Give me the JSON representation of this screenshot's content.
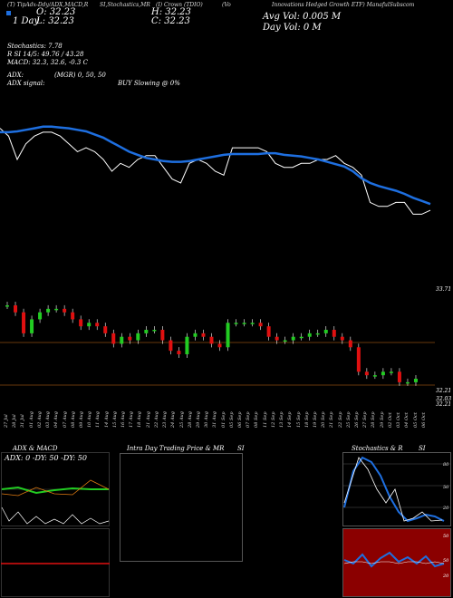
{
  "header": {
    "row1_left": "(T) TipAdx-Ddy/ADX,MACD,R",
    "row1_mid1": "SI,Stochastics,MR",
    "row1_mid2": "(I) Crown (TDIO)",
    "row1_right": "(Vo",
    "row1_far_right": "Innovations Hedged Growth ETF) ManafulSubscom",
    "open_label": "O: 32.23",
    "high_label": "H: 32.23",
    "close_label": "C: 32.23",
    "low_label": "L: 32.23",
    "day_label": "1 Day",
    "avg_vol_label": "Avg Vol: 0.005 M",
    "day_vol_label": "Day Vol: 0   M",
    "stoch_label": "Stochastics: 7.78",
    "rsi_label": "R        SI 14/5: 49.76  / 43.28",
    "macd_label": "MACD: 32.3,  32.6,  -0.3 C",
    "adx_label": "ADX:",
    "mgr_label": "(MGR) 0,  50,  50",
    "adx_signal_label": "ADX  signal:",
    "buy_label": "BUY Slowing @ 0%"
  },
  "price_labels": {
    "top": "33.71",
    "p1": "32.21",
    "p2": "32.03",
    "p3": "32.21"
  },
  "dates": [
    "27 Jul",
    "28 Jul",
    "31 Jul",
    "01 Aug",
    "02 Aug",
    "03 Aug",
    "04 Aug",
    "07 Aug",
    "08 Aug",
    "09 Aug",
    "10 Aug",
    "11 Aug",
    "14 Aug",
    "15 Aug",
    "16 Aug",
    "17 Aug",
    "18 Aug",
    "21 Aug",
    "22 Aug",
    "23 Aug",
    "24 Aug",
    "25 Aug",
    "28 Aug",
    "29 Aug",
    "30 Aug",
    "31 Aug",
    "01 Sep",
    "05 Sep",
    "06 Sep",
    "07 Sep",
    "08 Sep",
    "11 Sep",
    "12 Sep",
    "13 Sep",
    "14 Sep",
    "15 Sep",
    "18 Sep",
    "19 Sep",
    "20 Sep",
    "21 Sep",
    "22 Sep",
    "25 Sep",
    "26 Sep",
    "27 Sep",
    "28 Sep",
    "29 Sep",
    "02 Oct",
    "03 Oct",
    "04 Oct",
    "05 Oct",
    "06 Oct"
  ],
  "panels": {
    "adx_title": "ADX  & MACD",
    "adx_inner": "ADX: 0   -DY: 50   -DY: 50",
    "intraday_title": "Intra  Day Trading Price  & MR",
    "intraday_si": "SI",
    "stoch_title": "Stochastics & R",
    "stoch_si": "SI",
    "stoch_levels": [
      "80",
      "50",
      "20"
    ],
    "rsi_levels": [
      "50",
      "50",
      "20"
    ]
  },
  "colors": {
    "bg": "#000000",
    "ma": "#1e6fe0",
    "price": "#ffffff",
    "up": "#22cc22",
    "down": "#e01010",
    "rsi_bg": "#8b0000",
    "orange": "#e07a10"
  },
  "chart_data": {
    "type": "line",
    "series": [
      {
        "values": [
          33.4,
          33.3,
          33.0,
          33.2,
          33.3,
          33.35,
          33.35,
          33.3,
          33.2,
          33.1,
          33.15,
          33.1,
          33.0,
          32.85,
          32.95,
          32.9,
          33.0,
          33.05,
          33.05,
          32.9,
          32.75,
          32.7,
          32.95,
          33.0,
          32.95,
          32.85,
          32.8,
          33.15,
          33.15,
          33.15,
          33.15,
          33.1,
          32.95,
          32.9,
          32.9,
          32.95,
          32.95,
          33.0,
          33.0,
          33.05,
          32.95,
          32.9,
          32.8,
          32.45,
          32.4,
          32.4,
          32.45,
          32.45,
          32.3,
          32.3,
          32.35
        ]
      },
      {
        "values": [
          33.35,
          33.35,
          33.36,
          33.38,
          33.4,
          33.42,
          33.42,
          33.41,
          33.4,
          33.38,
          33.36,
          33.32,
          33.28,
          33.22,
          33.16,
          33.1,
          33.06,
          33.02,
          33.0,
          32.98,
          32.97,
          32.97,
          32.98,
          33.0,
          33.02,
          33.04,
          33.06,
          33.07,
          33.07,
          33.07,
          33.07,
          33.08,
          33.08,
          33.06,
          33.05,
          33.04,
          33.02,
          33.0,
          32.97,
          32.94,
          32.91,
          32.85,
          32.76,
          32.7,
          32.66,
          32.63,
          32.6,
          32.56,
          32.51,
          32.47,
          32.43
        ]
      }
    ]
  }
}
